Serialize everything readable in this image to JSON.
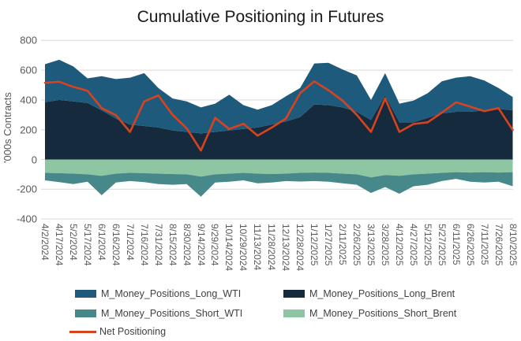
{
  "title": "Cumulative Positioning in Futures",
  "y_axis": {
    "title": "'000s Contracts",
    "ticks": [
      800,
      600,
      400,
      200,
      0,
      -200,
      -400
    ],
    "min": -400,
    "max": 800
  },
  "colors": {
    "long_wti": "#1E5A7C",
    "long_brent": "#152A3C",
    "short_wti": "#47898A",
    "short_brent": "#8EC5A2",
    "net": "#D8431F",
    "gridline": "#D9D9D9",
    "axis_text": "#595959",
    "legend_text": "#404040"
  },
  "legend": [
    {
      "label": "M_Money_Positions_Long_WTI",
      "color": "#1E5A7C",
      "swatch": "area",
      "col": 0,
      "row": 0
    },
    {
      "label": "M_Money_Positions_Long_Brent",
      "color": "#152A3C",
      "swatch": "area",
      "col": 1,
      "row": 0
    },
    {
      "label": "M_Money_Positions_Short_WTI",
      "color": "#47898A",
      "swatch": "area",
      "col": 0,
      "row": 1
    },
    {
      "label": "M_Money_Positions_Short_Brent",
      "color": "#8EC5A2",
      "swatch": "area",
      "col": 1,
      "row": 1
    },
    {
      "label": "Net Positioning",
      "color": "#D8431F",
      "swatch": "line",
      "col": 0,
      "row": 2
    }
  ],
  "chart_data": {
    "type": "area",
    "stacked": true,
    "title": "Cumulative Positioning in Futures",
    "xlabel": "",
    "ylabel": "'000s Contracts",
    "ylim": [
      -400,
      800
    ],
    "grid": "horizontal",
    "legend_position": "bottom",
    "categories": [
      "4/2/2024",
      "4/17/2024",
      "5/2/2024",
      "5/17/2024",
      "6/1/2024",
      "6/16/2024",
      "7/1/2024",
      "7/16/2024",
      "7/31/2024",
      "8/15/2024",
      "8/30/2024",
      "9/14/2024",
      "9/29/2024",
      "10/14/2024",
      "10/29/2024",
      "11/13/2024",
      "11/28/2024",
      "12/13/2024",
      "12/28/2024",
      "1/12/2025",
      "1/27/2025",
      "2/11/2025",
      "2/26/2025",
      "3/13/2025",
      "3/28/2025",
      "4/12/2025",
      "4/27/2025",
      "5/12/2025",
      "5/27/2025",
      "6/11/2025",
      "6/26/2025",
      "7/11/2025",
      "7/26/2025",
      "8/10/2025"
    ],
    "series": [
      {
        "name": "M_Money_Positions_Long_Brent",
        "type": "area",
        "stack_side": "positive",
        "stack_order": 1,
        "color": "#152A3C",
        "values": [
          385,
          400,
          390,
          380,
          330,
          275,
          235,
          225,
          215,
          195,
          185,
          175,
          185,
          195,
          205,
          215,
          235,
          255,
          285,
          370,
          365,
          350,
          320,
          265,
          430,
          250,
          250,
          280,
          310,
          320,
          320,
          330,
          340,
          330
        ]
      },
      {
        "name": "M_Money_Positions_Long_WTI",
        "type": "area",
        "stack_side": "positive",
        "stack_order": 2,
        "color": "#1E5A7C",
        "values": [
          255,
          270,
          235,
          165,
          230,
          265,
          315,
          355,
          265,
          215,
          205,
          175,
          190,
          240,
          160,
          120,
          130,
          170,
          195,
          275,
          285,
          255,
          245,
          135,
          150,
          125,
          145,
          165,
          215,
          230,
          240,
          200,
          140,
          90
        ]
      },
      {
        "name": "M_Money_Positions_Short_Brent",
        "type": "area",
        "stack_side": "negative",
        "stack_order": 1,
        "color": "#8EC5A2",
        "values": [
          -90,
          -92,
          -95,
          -100,
          -110,
          -95,
          -90,
          -92,
          -95,
          -98,
          -100,
          -115,
          -100,
          -95,
          -90,
          -95,
          -98,
          -95,
          -90,
          -88,
          -90,
          -95,
          -100,
          -120,
          -105,
          -110,
          -100,
          -95,
          -90,
          -85,
          -88,
          -85,
          -88,
          -85
        ]
      },
      {
        "name": "M_Money_Positions_Short_WTI",
        "type": "area",
        "stack_side": "negative",
        "stack_order": 2,
        "color": "#47898A",
        "values": [
          -50,
          -60,
          -70,
          -50,
          -130,
          -60,
          -55,
          -60,
          -70,
          -72,
          -65,
          -135,
          -55,
          -55,
          -50,
          -65,
          -57,
          -50,
          -58,
          -57,
          -60,
          -65,
          -70,
          -105,
          -80,
          -120,
          -80,
          -75,
          -55,
          -45,
          -62,
          -70,
          -62,
          -95
        ]
      },
      {
        "name": "Net Positioning",
        "type": "line",
        "color": "#D8431F",
        "values": [
          515,
          522,
          488,
          462,
          345,
          298,
          185,
          390,
          430,
          300,
          210,
          60,
          280,
          205,
          240,
          160,
          215,
          275,
          445,
          525,
          465,
          395,
          300,
          185,
          410,
          185,
          238,
          250,
          315,
          384,
          355,
          325,
          345,
          198
        ]
      }
    ]
  }
}
